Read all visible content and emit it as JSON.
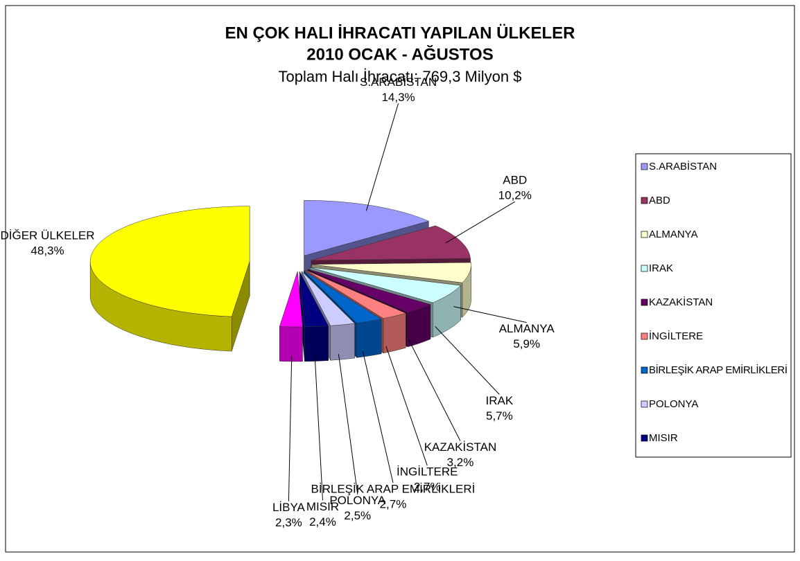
{
  "chart_data": {
    "type": "pie",
    "title": "EN ÇOK HALI İHRACATI YAPILAN ÜLKELER",
    "subtitle": "2010 OCAK - AĞUSTOS",
    "caption": "Toplam Halı İhracatı: 769,3 Milyon $",
    "categories": [
      "S.ARABİSTAN",
      "ABD",
      "ALMANYA",
      "IRAK",
      "KAZAKİSTAN",
      "İNGİLTERE",
      "BİRLEŞİK ARAP EMİRLİKLERİ",
      "POLONYA",
      "MISIR",
      "LİBYA",
      "DİĞER ÜLKELER"
    ],
    "values": [
      14.3,
      10.2,
      5.9,
      5.7,
      3.2,
      2.7,
      2.7,
      2.5,
      2.4,
      2.3,
      48.3
    ],
    "value_labels": [
      "14,3%",
      "10,2%",
      "5,9%",
      "5,7%",
      "3,2%",
      "2,7%",
      "2,7%",
      "2,5%",
      "2,4%",
      "2,3%",
      "48,3%"
    ],
    "colors": [
      "#9999ff",
      "#993366",
      "#ffffcc",
      "#ccffff",
      "#660066",
      "#ff8080",
      "#0066cc",
      "#ccccff",
      "#000080",
      "#ff00ff",
      "#ffff00"
    ],
    "legend": "right"
  }
}
